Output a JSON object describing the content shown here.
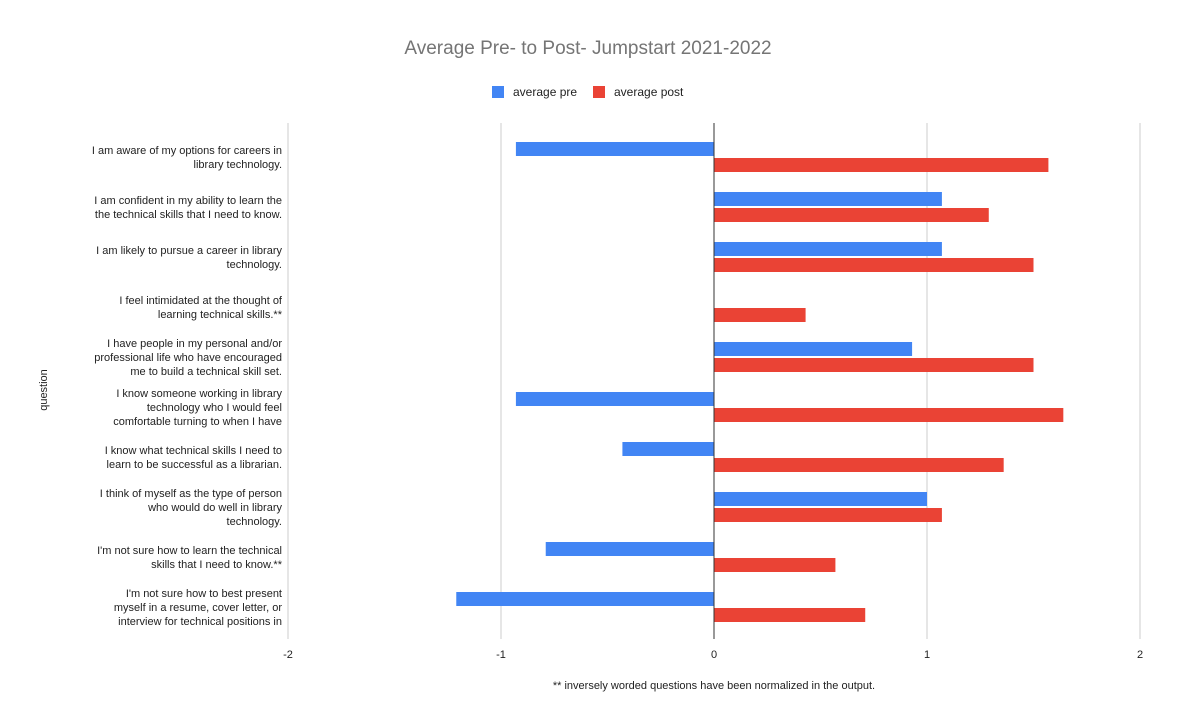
{
  "chart_data": {
    "type": "bar",
    "orientation": "horizontal",
    "title": "Average Pre- to Post- Jumpstart 2021-2022",
    "ylabel": "question",
    "xlabel": "",
    "footnote": "** inversely worded questions have been normalized in the output.",
    "xlim": [
      -2,
      2
    ],
    "xticks": [
      "-2",
      "-1",
      "0",
      "1",
      "2"
    ],
    "grid": true,
    "legend_position": "top",
    "categories": [
      [
        "I am aware of my options for careers in",
        "library technology."
      ],
      [
        "I am confident in my ability to learn the",
        "the technical skills that I need to know."
      ],
      [
        "I am likely to pursue a career in library",
        "technology."
      ],
      [
        "I feel intimidated at the thought of",
        "learning technical skills.**"
      ],
      [
        "I have people in my personal and/or",
        "professional life who have encouraged",
        "me to build a technical skill set."
      ],
      [
        "I know someone working in library",
        "technology who I would feel",
        "comfortable turning to when I have"
      ],
      [
        "I know what technical skills I need to",
        "learn to be successful as a librarian."
      ],
      [
        "I think of myself as the type of person",
        "who would do well in library",
        "technology."
      ],
      [
        "I'm not sure how to learn the technical",
        "skills that I need to know.**"
      ],
      [
        "I'm not sure how to best present",
        "myself in a resume, cover letter, or",
        "interview for technical positions in"
      ]
    ],
    "series": [
      {
        "name": "average pre",
        "color": "#4285f4",
        "values": [
          -0.93,
          1.07,
          1.07,
          0,
          0.93,
          -0.93,
          -0.43,
          1.0,
          -0.79,
          -1.21
        ]
      },
      {
        "name": "average post",
        "color": "#ea4335",
        "values": [
          1.57,
          1.29,
          1.5,
          0.43,
          1.5,
          1.64,
          1.36,
          1.07,
          0.57,
          0.71
        ]
      }
    ]
  }
}
